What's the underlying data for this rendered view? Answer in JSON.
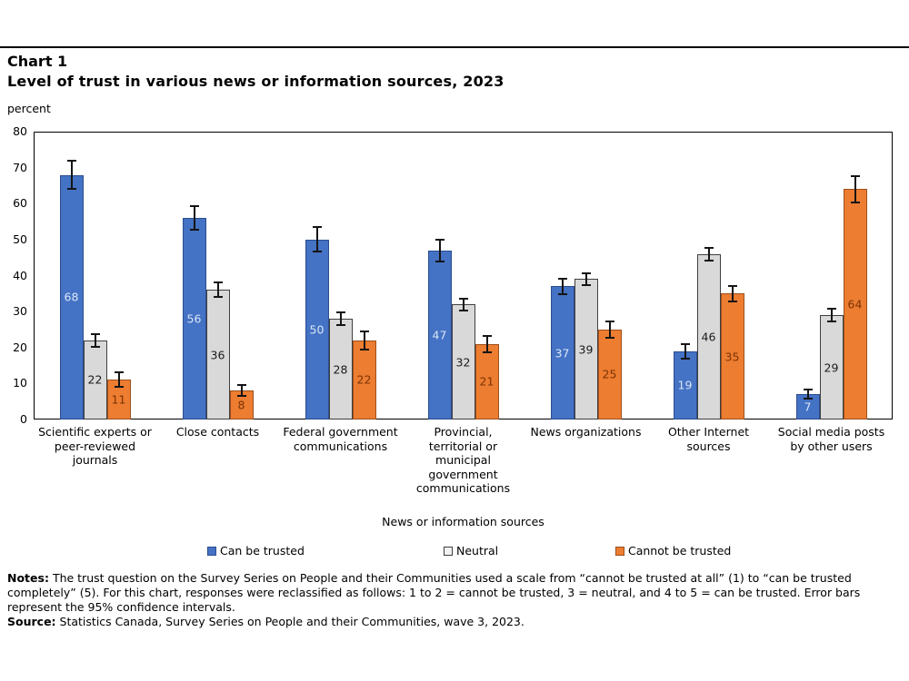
{
  "chart_data": {
    "type": "bar",
    "title": "Chart 1",
    "subtitle": "Level of trust in various news or information sources, 2023",
    "ylabel": "percent",
    "xlabel": "News or information sources",
    "ylim": [
      0,
      80
    ],
    "yticks": [
      0,
      10,
      20,
      30,
      40,
      50,
      60,
      70,
      80
    ],
    "grid": false,
    "legend_position": "bottom",
    "error_bars": "95% confidence intervals",
    "categories": [
      "Scientific experts or\npeer-reviewed\njournals",
      "Close contacts",
      "Federal government\ncommunications",
      "Provincial,\nterritorial or\nmunicipal\ngovernment\ncommunications",
      "News organizations",
      "Other Internet\nsources",
      "Social media posts\nby other users"
    ],
    "series": [
      {
        "name": "Can be trusted",
        "color": "#4472C4",
        "border_color": "#2C4D8E",
        "label_color": "#DAE5F5",
        "values": [
          68,
          56,
          50,
          47,
          37,
          19,
          7
        ],
        "errors": [
          4.0,
          3.3,
          3.4,
          3.0,
          2.2,
          2.0,
          1.3
        ]
      },
      {
        "name": "Neutral",
        "color": "#D9D9D9",
        "border_color": "#3F3F3F",
        "label_color": "#1A1A1A",
        "values": [
          22,
          36,
          28,
          32,
          39,
          46,
          29
        ],
        "errors": [
          1.7,
          2.0,
          1.8,
          1.6,
          1.7,
          1.8,
          1.7
        ]
      },
      {
        "name": "Cannot be trusted",
        "color": "#ED7D31",
        "border_color": "#9C4F1B",
        "label_color": "#7B3304",
        "values": [
          11,
          8,
          22,
          21,
          25,
          35,
          64
        ],
        "errors": [
          2.0,
          1.5,
          2.5,
          2.2,
          2.2,
          2.2,
          3.7
        ]
      }
    ]
  },
  "notes": {
    "notes_label": "Notes:",
    "notes_text": "The trust question on the Survey Series on People and their Communities used a scale from “cannot be trusted at all” (1) to “can be trusted completely” (5). For this chart, responses were reclassified as follows: 1 to 2 = cannot be trusted, 3 = neutral, and 4 to 5 = can be trusted. Error bars represent the 95% confidence intervals.",
    "source_label": "Source:",
    "source_text": "Statistics Canada, Survey Series on People and their Communities, wave 3, 2023."
  }
}
